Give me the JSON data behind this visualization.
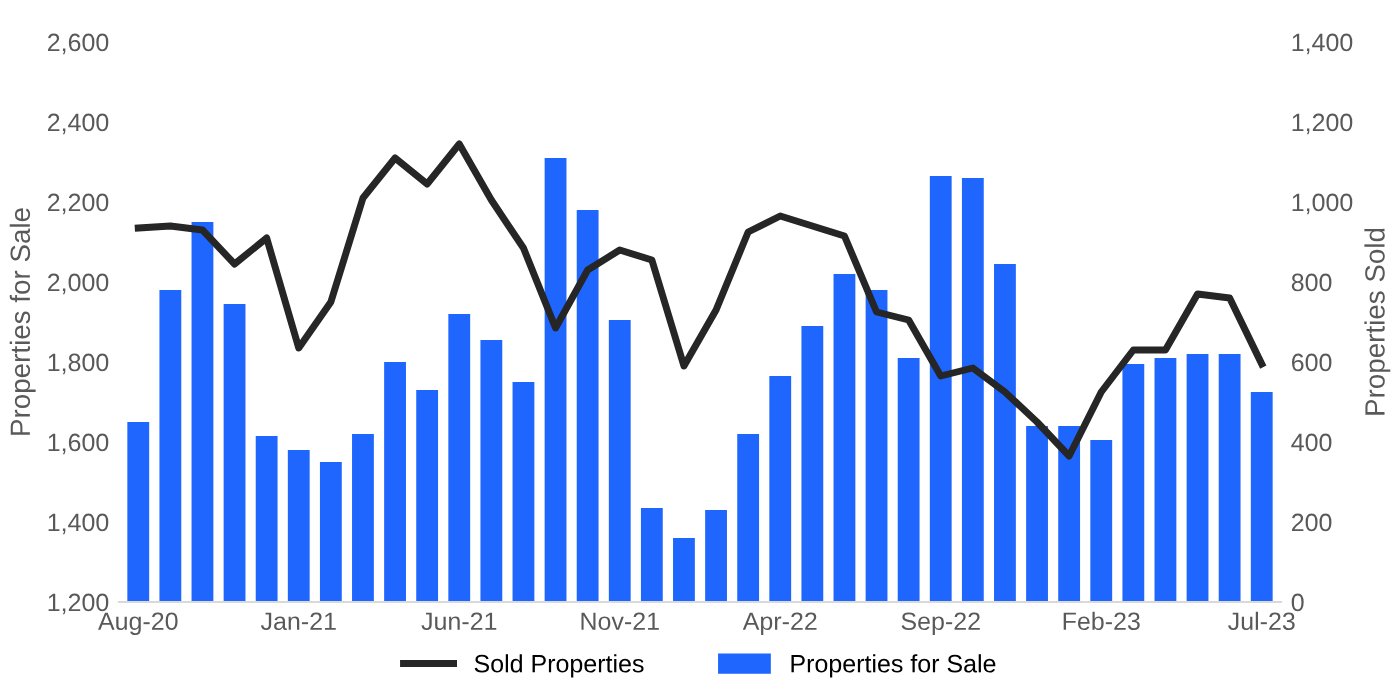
{
  "chart_data": {
    "type": "bar",
    "xlabel": null,
    "ylabel": "Properties for Sale",
    "y2label": "Properties Sold",
    "categories": [
      "Aug-20",
      null,
      null,
      null,
      null,
      "Jan-21",
      null,
      null,
      null,
      null,
      "Jun-21",
      null,
      null,
      null,
      null,
      "Nov-21",
      null,
      null,
      null,
      null,
      "Apr-22",
      null,
      null,
      null,
      null,
      "Sep-22",
      null,
      null,
      null,
      null,
      "Feb-23",
      null,
      null,
      null,
      null,
      "Jul-23"
    ],
    "series": [
      {
        "name": "Sold Properties",
        "type": "line",
        "axis": "y2",
        "color": "#262626",
        "values": [
          935,
          940,
          930,
          845,
          910,
          635,
          750,
          1010,
          1110,
          1045,
          1145,
          1005,
          885,
          685,
          830,
          880,
          855,
          590,
          730,
          925,
          965,
          940,
          915,
          725,
          705,
          565,
          585,
          525,
          450,
          365,
          525,
          630,
          630,
          770,
          760,
          595
        ]
      },
      {
        "name": "Properties for Sale",
        "color": "#1f66ff",
        "values": [
          1650,
          1980,
          2150,
          1945,
          1615,
          1580,
          1550,
          1620,
          1800,
          1730,
          1920,
          1855,
          1750,
          2310,
          2180,
          1905,
          1435,
          1360,
          1430,
          1620,
          1765,
          1890,
          2020,
          1980,
          1810,
          2265,
          2260,
          2045,
          1640,
          1640,
          1605,
          1795,
          1810,
          1820,
          1820,
          1725
        ]
      }
    ],
    "ylim": [
      1200,
      2600
    ],
    "yticks": [
      {
        "value": 1200,
        "label": "1,200"
      },
      {
        "value": 1400,
        "label": "1,400"
      },
      {
        "value": 1600,
        "label": "1,600"
      },
      {
        "value": 1800,
        "label": "1,800"
      },
      {
        "value": 2000,
        "label": "2,000"
      },
      {
        "value": 2200,
        "label": "2,200"
      },
      {
        "value": 2400,
        "label": "2,400"
      },
      {
        "value": 2600,
        "label": "2,600"
      }
    ],
    "y2lim": [
      0,
      1400
    ],
    "y2ticks": [
      0,
      200,
      400,
      600,
      800,
      {
        "value": 1000,
        "label": "1,000"
      },
      {
        "value": 1200,
        "label": "1,200"
      },
      {
        "value": 1400,
        "label": "1,400"
      }
    ],
    "legend": "bottom",
    "grid": false
  }
}
